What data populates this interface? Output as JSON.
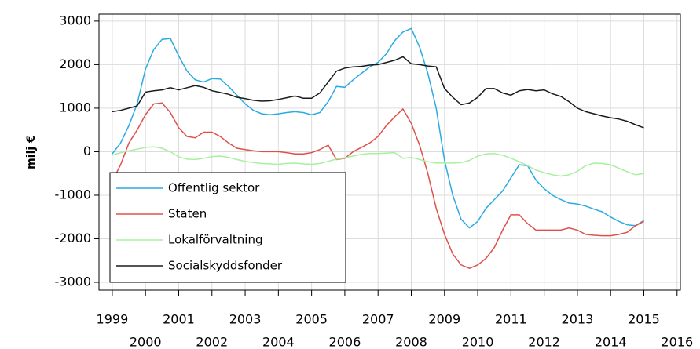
{
  "chart_data": {
    "type": "line",
    "ylabel": "milj €",
    "x": [
      1999,
      1999.25,
      1999.5,
      1999.75,
      2000,
      2000.25,
      2000.5,
      2000.75,
      2001,
      2001.25,
      2001.5,
      2001.75,
      2002,
      2002.25,
      2002.5,
      2002.75,
      2003,
      2003.25,
      2003.5,
      2003.75,
      2004,
      2004.25,
      2004.5,
      2004.75,
      2005,
      2005.25,
      2005.5,
      2005.75,
      2006,
      2006.25,
      2006.5,
      2006.75,
      2007,
      2007.25,
      2007.5,
      2007.75,
      2008,
      2008.25,
      2008.5,
      2008.75,
      2009,
      2009.25,
      2009.5,
      2009.75,
      2010,
      2010.25,
      2010.5,
      2010.75,
      2011,
      2011.25,
      2011.5,
      2011.75,
      2012,
      2012.25,
      2012.5,
      2012.75,
      2013,
      2013.25,
      2013.5,
      2013.75,
      2014,
      2014.25,
      2014.5,
      2014.75,
      2015
    ],
    "series": [
      {
        "name": "Offentlig sektor",
        "color": "#29abe2",
        "values": [
          -50,
          200,
          600,
          1100,
          1900,
          2350,
          2580,
          2600,
          2200,
          1850,
          1650,
          1600,
          1680,
          1670,
          1500,
          1300,
          1100,
          950,
          870,
          850,
          870,
          900,
          920,
          900,
          850,
          900,
          1150,
          1500,
          1480,
          1650,
          1800,
          1950,
          2050,
          2250,
          2550,
          2750,
          2830,
          2400,
          1800,
          1000,
          -200,
          -1000,
          -1550,
          -1750,
          -1600,
          -1300,
          -1100,
          -900,
          -600,
          -300,
          -320,
          -650,
          -850,
          -1000,
          -1100,
          -1180,
          -1200,
          -1250,
          -1320,
          -1380,
          -1500,
          -1600,
          -1680,
          -1700,
          -1580
        ]
      },
      {
        "name": "Staten",
        "color": "#e0504a",
        "values": [
          -680,
          -300,
          200,
          500,
          850,
          1100,
          1120,
          900,
          550,
          350,
          320,
          450,
          450,
          350,
          200,
          80,
          50,
          20,
          0,
          0,
          0,
          -20,
          -50,
          -50,
          -20,
          50,
          150,
          -180,
          -150,
          0,
          100,
          200,
          350,
          600,
          800,
          980,
          650,
          150,
          -500,
          -1300,
          -1900,
          -2350,
          -2600,
          -2680,
          -2600,
          -2450,
          -2200,
          -1800,
          -1450,
          -1450,
          -1650,
          -1800,
          -1800,
          -1800,
          -1800,
          -1750,
          -1800,
          -1900,
          -1920,
          -1930,
          -1930,
          -1900,
          -1850,
          -1700,
          -1600
        ]
      },
      {
        "name": "Lokalförvaltning",
        "color": "#a8f0a0",
        "values": [
          -80,
          -20,
          20,
          60,
          100,
          110,
          80,
          0,
          -120,
          -170,
          -180,
          -150,
          -110,
          -100,
          -130,
          -180,
          -220,
          -250,
          -270,
          -280,
          -290,
          -270,
          -260,
          -280,
          -290,
          -270,
          -220,
          -170,
          -140,
          -100,
          -60,
          -40,
          -40,
          -30,
          -20,
          -150,
          -130,
          -180,
          -230,
          -260,
          -260,
          -260,
          -250,
          -200,
          -100,
          -50,
          -40,
          -80,
          -150,
          -230,
          -320,
          -420,
          -480,
          -530,
          -560,
          -530,
          -450,
          -320,
          -260,
          -270,
          -300,
          -380,
          -460,
          -530,
          -500
        ]
      },
      {
        "name": "Socialskyddsfonder",
        "color": "#1a1a1a",
        "values": [
          920,
          950,
          1000,
          1050,
          1370,
          1400,
          1420,
          1470,
          1420,
          1470,
          1520,
          1480,
          1400,
          1360,
          1320,
          1250,
          1220,
          1180,
          1160,
          1170,
          1200,
          1240,
          1280,
          1230,
          1230,
          1350,
          1600,
          1850,
          1920,
          1950,
          1960,
          1990,
          2000,
          2050,
          2100,
          2180,
          2020,
          2000,
          1970,
          1950,
          1450,
          1250,
          1080,
          1120,
          1250,
          1450,
          1450,
          1350,
          1300,
          1400,
          1430,
          1400,
          1420,
          1330,
          1270,
          1150,
          1000,
          920,
          870,
          820,
          780,
          750,
          700,
          620,
          550
        ]
      }
    ],
    "xlim": [
      1998.6,
      2016.1
    ],
    "xticks": [
      1999,
      2000,
      2001,
      2002,
      2003,
      2004,
      2005,
      2006,
      2007,
      2008,
      2009,
      2010,
      2011,
      2012,
      2013,
      2014,
      2015,
      2016
    ],
    "ylim": [
      -3180,
      3160
    ],
    "yticks": [
      -3000,
      -2000,
      -1000,
      0,
      1000,
      2000,
      3000
    ],
    "grid": true,
    "legend": "lower left"
  }
}
